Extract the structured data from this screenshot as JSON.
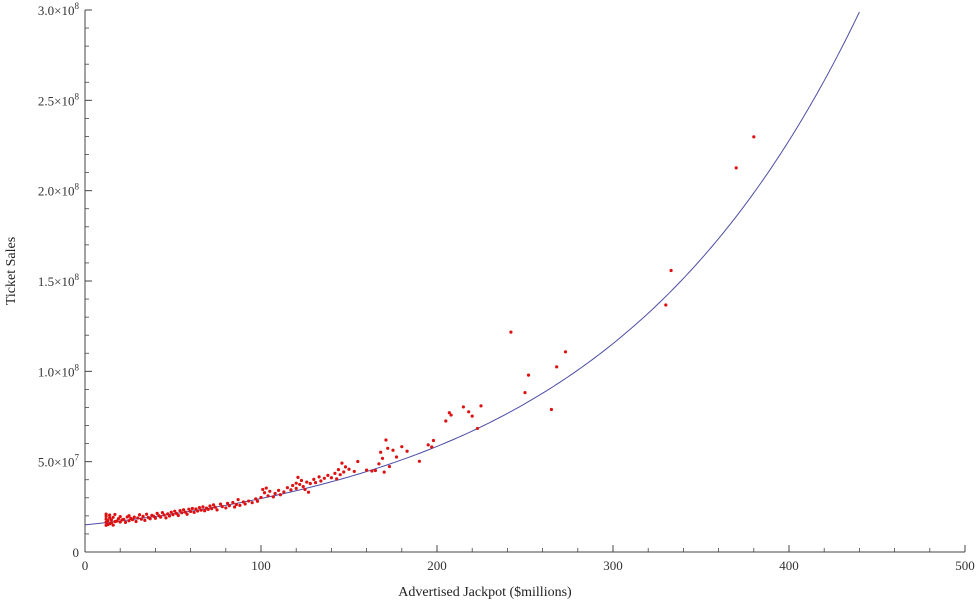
{
  "chart_data": {
    "type": "scatter",
    "title": "",
    "xlabel": "Advertised Jackpot ($millions)",
    "ylabel": "Ticket Sales",
    "xlim": [
      0,
      500
    ],
    "ylim": [
      0,
      300000000
    ],
    "x_ticks": [
      {
        "value": 0,
        "label": "0"
      },
      {
        "value": 100,
        "label": "100"
      },
      {
        "value": 200,
        "label": "200"
      },
      {
        "value": 300,
        "label": "300"
      },
      {
        "value": 400,
        "label": "400"
      },
      {
        "value": 500,
        "label": "500"
      }
    ],
    "y_ticks": [
      {
        "value": 0,
        "mantissa": "0",
        "exponent": ""
      },
      {
        "value": 50000000,
        "mantissa": "5.0×10",
        "exponent": "7"
      },
      {
        "value": 100000000,
        "mantissa": "1.0×10",
        "exponent": "8"
      },
      {
        "value": 150000000,
        "mantissa": "1.5×10",
        "exponent": "8"
      },
      {
        "value": 200000000,
        "mantissa": "2.0×10",
        "exponent": "8"
      },
      {
        "value": 250000000,
        "mantissa": "2.5×10",
        "exponent": "8"
      },
      {
        "value": 300000000,
        "mantissa": "3.0×10",
        "exponent": "8"
      }
    ],
    "grid": false,
    "colors": {
      "points": "#dd1111",
      "fit": "#4d4da6",
      "axes": "#444444"
    },
    "series": [
      {
        "type": "scatter",
        "points": [
          [
            12,
            14800000
          ],
          [
            12,
            16500000
          ],
          [
            12,
            18200000
          ],
          [
            12,
            19800000
          ],
          [
            12,
            21000000
          ],
          [
            13,
            15200000
          ],
          [
            13,
            17400000
          ],
          [
            14,
            15600000
          ],
          [
            14,
            18900000
          ],
          [
            14,
            20400000
          ],
          [
            15,
            16200000
          ],
          [
            15,
            17800000
          ],
          [
            16,
            14900000
          ],
          [
            16,
            19200000
          ],
          [
            17,
            16800000
          ],
          [
            17,
            20800000
          ],
          [
            18,
            17100000
          ],
          [
            19,
            18400000
          ],
          [
            20,
            16600000
          ],
          [
            20,
            19600000
          ],
          [
            21,
            17700000
          ],
          [
            22,
            18100000
          ],
          [
            23,
            16400000
          ],
          [
            24,
            19400000
          ],
          [
            25,
            17300000
          ],
          [
            25,
            20100000
          ],
          [
            26,
            18600000
          ],
          [
            27,
            17900000
          ],
          [
            28,
            19300000
          ],
          [
            29,
            16900000
          ],
          [
            30,
            18800000
          ],
          [
            31,
            20600000
          ],
          [
            32,
            18200000
          ],
          [
            33,
            19700000
          ],
          [
            34,
            17500000
          ],
          [
            35,
            20900000
          ],
          [
            36,
            19100000
          ],
          [
            37,
            18400000
          ],
          [
            38,
            20300000
          ],
          [
            39,
            19800000
          ],
          [
            40,
            18700000
          ],
          [
            41,
            21400000
          ],
          [
            42,
            20100000
          ],
          [
            43,
            19300000
          ],
          [
            44,
            21800000
          ],
          [
            45,
            20500000
          ],
          [
            46,
            18900000
          ],
          [
            47,
            21100000
          ],
          [
            48,
            19900000
          ],
          [
            49,
            22000000
          ],
          [
            50,
            20700000
          ],
          [
            51,
            22600000
          ],
          [
            52,
            21300000
          ],
          [
            53,
            20200000
          ],
          [
            54,
            22900000
          ],
          [
            55,
            21700000
          ],
          [
            56,
            23400000
          ],
          [
            57,
            22100000
          ],
          [
            58,
            20900000
          ],
          [
            59,
            23700000
          ],
          [
            60,
            22400000
          ],
          [
            61,
            24100000
          ],
          [
            62,
            21900000
          ],
          [
            63,
            23800000
          ],
          [
            64,
            22700000
          ],
          [
            65,
            24600000
          ],
          [
            66,
            23200000
          ],
          [
            67,
            25000000
          ],
          [
            68,
            22800000
          ],
          [
            69,
            24300000
          ],
          [
            70,
            23600000
          ],
          [
            71,
            25500000
          ],
          [
            72,
            24000000
          ],
          [
            73,
            26100000
          ],
          [
            74,
            24800000
          ],
          [
            75,
            23300000
          ],
          [
            77,
            26500000
          ],
          [
            78,
            25100000
          ],
          [
            80,
            24400000
          ],
          [
            81,
            26900000
          ],
          [
            82,
            25600000
          ],
          [
            84,
            27400000
          ],
          [
            85,
            24900000
          ],
          [
            86,
            26300000
          ],
          [
            87,
            29000000
          ],
          [
            88,
            25800000
          ],
          [
            90,
            27700000
          ],
          [
            91,
            26600000
          ],
          [
            93,
            28200000
          ],
          [
            95,
            27300000
          ],
          [
            97,
            29400000
          ],
          [
            98,
            28100000
          ],
          [
            100,
            30200000
          ],
          [
            101,
            34600000
          ],
          [
            102,
            32800000
          ],
          [
            103,
            35400000
          ],
          [
            104,
            31100000
          ],
          [
            105,
            33600000
          ],
          [
            107,
            30500000
          ],
          [
            108,
            32400000
          ],
          [
            110,
            34100000
          ],
          [
            111,
            31700000
          ],
          [
            113,
            33200000
          ],
          [
            115,
            35600000
          ],
          [
            117,
            34400000
          ],
          [
            118,
            36800000
          ],
          [
            120,
            38100000
          ],
          [
            120,
            35200000
          ],
          [
            121,
            41300000
          ],
          [
            122,
            37400000
          ],
          [
            123,
            39600000
          ],
          [
            124,
            36200000
          ],
          [
            125,
            34600000
          ],
          [
            126,
            38700000
          ],
          [
            127,
            33100000
          ],
          [
            128,
            37900000
          ],
          [
            130,
            40200000
          ],
          [
            131,
            38400000
          ],
          [
            133,
            41600000
          ],
          [
            134,
            39300000
          ],
          [
            136,
            40800000
          ],
          [
            138,
            42400000
          ],
          [
            140,
            41100000
          ],
          [
            142,
            43500000
          ],
          [
            143,
            40500000
          ],
          [
            144,
            45600000
          ],
          [
            145,
            42800000
          ],
          [
            146,
            49200000
          ],
          [
            147,
            44300000
          ],
          [
            148,
            47100000
          ],
          [
            150,
            45800000
          ],
          [
            153,
            44600000
          ],
          [
            155,
            50100000
          ],
          [
            160,
            45300000
          ],
          [
            163,
            44800000
          ],
          [
            165,
            45100000
          ],
          [
            167,
            48800000
          ],
          [
            168,
            55200000
          ],
          [
            169,
            51800000
          ],
          [
            170,
            44200000
          ],
          [
            171,
            62000000
          ],
          [
            172,
            57400000
          ],
          [
            173,
            47300000
          ],
          [
            175,
            56300000
          ],
          [
            177,
            52600000
          ],
          [
            180,
            58300000
          ],
          [
            183,
            55800000
          ],
          [
            190,
            50200000
          ],
          [
            195,
            59300000
          ],
          [
            197,
            58100000
          ],
          [
            198,
            61700000
          ],
          [
            205,
            72500000
          ],
          [
            207,
            77100000
          ],
          [
            208,
            75800000
          ],
          [
            215,
            80300000
          ],
          [
            218,
            77600000
          ],
          [
            220,
            75200000
          ],
          [
            223,
            68400000
          ],
          [
            225,
            80900000
          ],
          [
            242,
            121700000
          ],
          [
            250,
            88200000
          ],
          [
            252,
            97900000
          ],
          [
            265,
            78900000
          ],
          [
            268,
            102500000
          ],
          [
            273,
            110800000
          ],
          [
            330,
            136700000
          ],
          [
            333,
            155800000
          ],
          [
            370,
            212600000
          ],
          [
            380,
            229800000
          ]
        ]
      },
      {
        "type": "line",
        "equation": "y = 15000000 * exp(0.0068 * x)",
        "x_range": [
          0,
          440
        ]
      }
    ]
  }
}
